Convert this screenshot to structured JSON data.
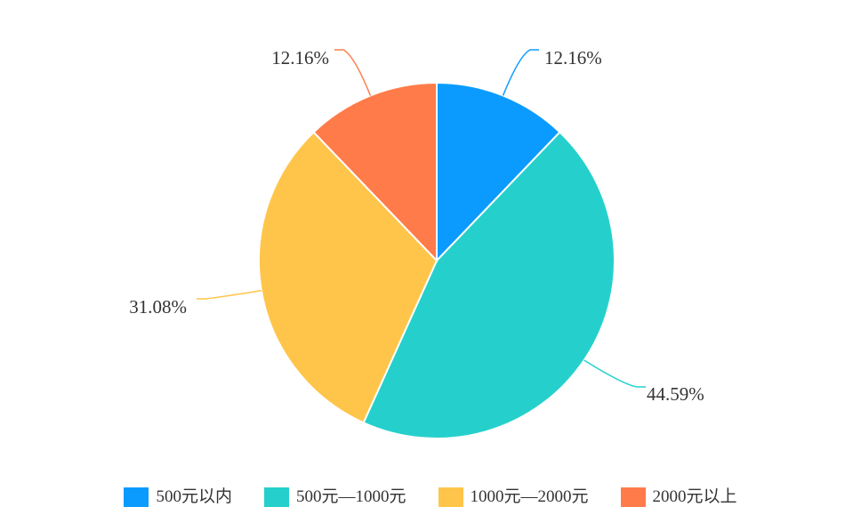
{
  "chart_data": {
    "type": "pie",
    "title": "",
    "categories": [
      "500元以内",
      "500元—1000元",
      "1000元—2000元",
      "2000元以上"
    ],
    "values": [
      12.16,
      44.59,
      31.08,
      12.16
    ],
    "labels": [
      "12.16%",
      "44.59%",
      "31.08%",
      "12.16%"
    ],
    "colors": [
      "#0b9bff",
      "#25d0cc",
      "#ffc54a",
      "#ff7b4a"
    ],
    "start_angle_deg": 0,
    "direction": "clockwise",
    "legend_position": "bottom"
  }
}
